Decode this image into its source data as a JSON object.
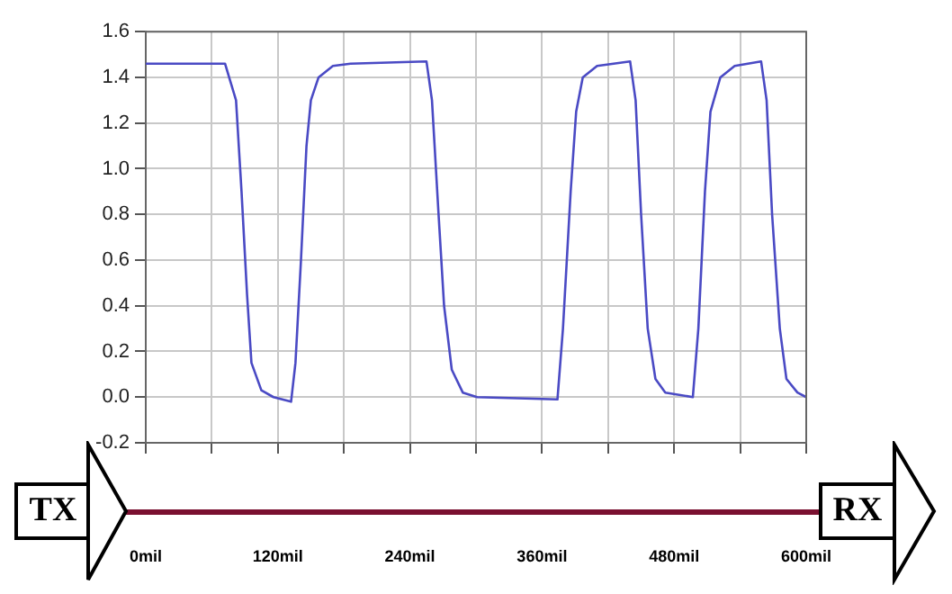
{
  "chart_data": {
    "type": "line",
    "x": [
      0,
      72,
      82,
      87,
      92,
      96,
      105,
      116,
      132,
      136,
      141,
      146,
      150,
      157,
      170,
      186,
      255,
      260,
      266,
      271,
      278,
      288,
      301,
      374,
      379,
      386,
      391,
      397,
      410,
      440,
      445,
      450,
      456,
      463,
      472,
      497,
      502,
      508,
      513,
      522,
      535,
      559,
      564,
      569,
      576,
      582,
      592,
      600
    ],
    "series": [
      {
        "color": "#4a4ac4",
        "values": [
          1.46,
          1.46,
          1.3,
          0.9,
          0.45,
          0.15,
          0.03,
          0.0,
          -0.02,
          0.15,
          0.6,
          1.1,
          1.3,
          1.4,
          1.45,
          1.46,
          1.47,
          1.3,
          0.8,
          0.4,
          0.12,
          0.02,
          0.0,
          -0.01,
          0.3,
          0.9,
          1.25,
          1.4,
          1.45,
          1.47,
          1.3,
          0.8,
          0.3,
          0.08,
          0.02,
          0.0,
          0.3,
          0.9,
          1.25,
          1.4,
          1.45,
          1.47,
          1.3,
          0.8,
          0.3,
          0.08,
          0.02,
          0.0
        ]
      }
    ],
    "xlim": [
      0,
      600
    ],
    "xticks": [
      {
        "value": 0,
        "label": "0mil"
      },
      {
        "value": 60,
        "label": null
      },
      {
        "value": 120,
        "label": "120mil"
      },
      {
        "value": 180,
        "label": null
      },
      {
        "value": 240,
        "label": "240mil"
      },
      {
        "value": 300,
        "label": null
      },
      {
        "value": 360,
        "label": "360mil"
      },
      {
        "value": 420,
        "label": null
      },
      {
        "value": 480,
        "label": "480mil"
      },
      {
        "value": 540,
        "label": null
      },
      {
        "value": 600,
        "label": "600mil"
      }
    ],
    "ylim": [
      -0.2,
      1.6
    ],
    "yticks": [
      {
        "value": -0.2,
        "label": "-0.2"
      },
      {
        "value": 0,
        "label": "0.0"
      },
      {
        "value": 0.2,
        "label": "0.2"
      },
      {
        "value": 0.4,
        "label": "0.4"
      },
      {
        "value": 0.6,
        "label": "0.6"
      },
      {
        "value": 0.8,
        "label": "0.8"
      },
      {
        "value": 1,
        "label": "1.0"
      },
      {
        "value": 1.2,
        "label": "1.2"
      },
      {
        "value": 1.4,
        "label": "1.4"
      },
      {
        "value": 1.6,
        "label": "1.6"
      }
    ],
    "grid": true,
    "legend": false,
    "marker": "none",
    "line_style": "solid",
    "annotations": [
      "TX",
      "RX"
    ]
  }
}
